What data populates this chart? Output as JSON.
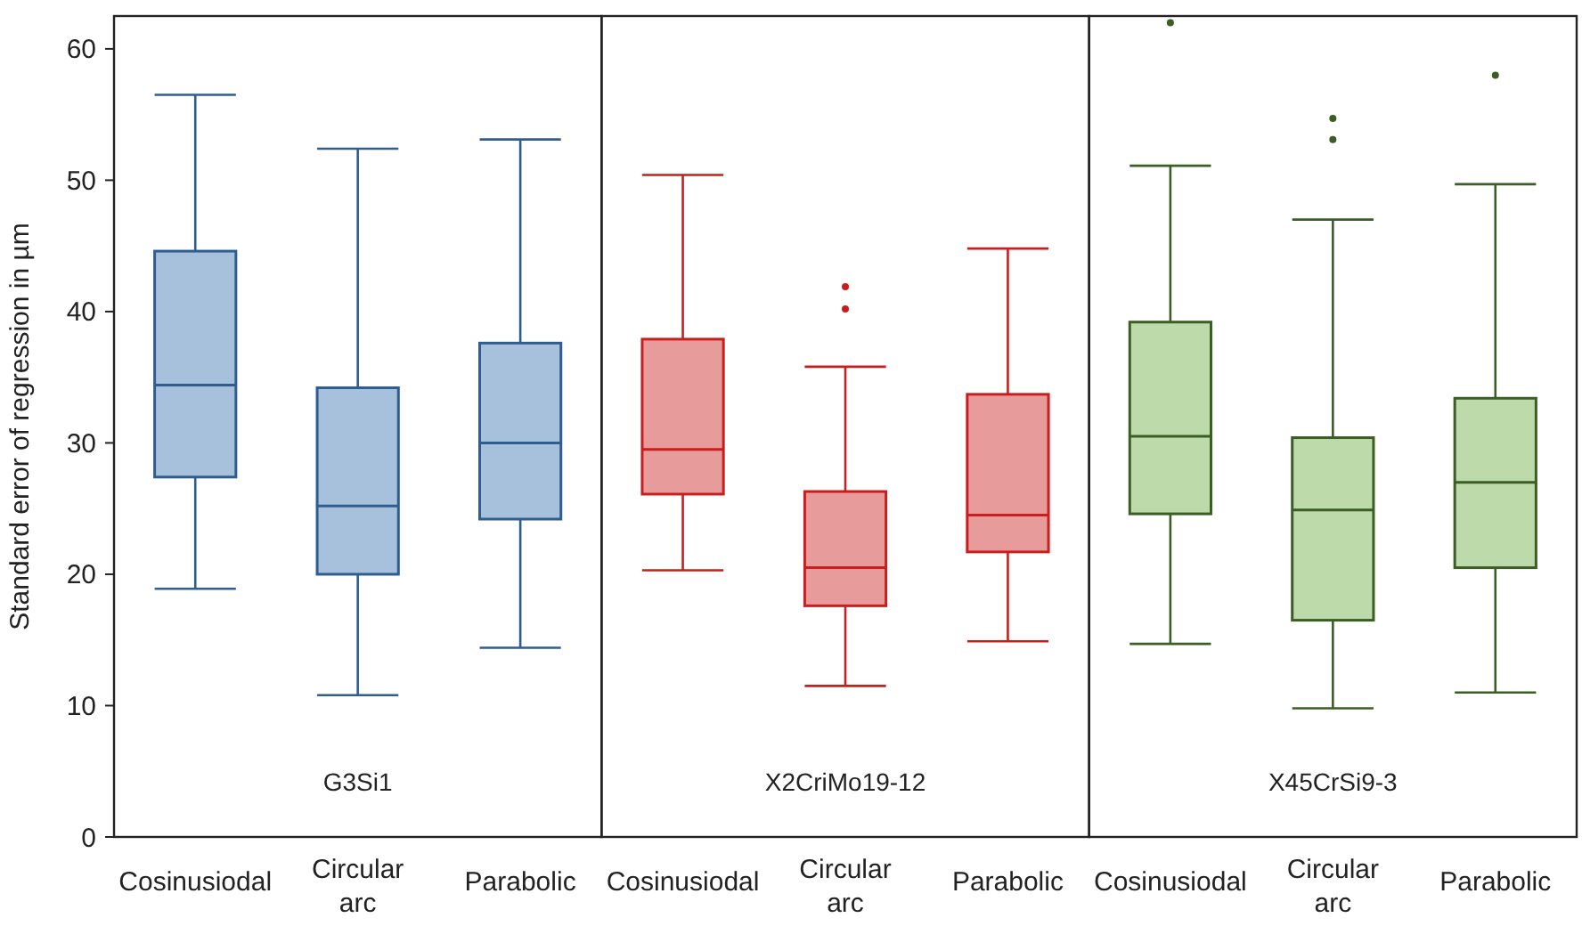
{
  "chart_data": [
    {
      "type": "box",
      "ylabel": "Standard error of regression in µm",
      "categories": [
        "Cosinusiodal",
        "Circular arc",
        "Parabolic"
      ],
      "ylim": [
        0,
        62.5
      ],
      "yticks": [
        0,
        10,
        20,
        30,
        40,
        50,
        60
      ],
      "series": [
        {
          "name": "G3Si1",
          "color": "#2e5d8e",
          "boxes": [
            {
              "low": 18.9,
              "q1": 27.4,
              "median": 34.4,
              "q3": 44.6,
              "high": 56.5
            },
            {
              "low": 10.8,
              "q1": 20.0,
              "median": 25.2,
              "q3": 34.2,
              "high": 52.4
            },
            {
              "low": 14.4,
              "q1": 24.2,
              "median": 30.0,
              "q3": 37.6,
              "high": 53.1
            }
          ]
        }
      ]
    },
    {
      "type": "box",
      "categories": [
        "Cosinusiodal",
        "Circular arc",
        "Parabolic"
      ],
      "ylim": [
        0,
        62.5
      ],
      "tick_labels": "x",
      "series": [
        {
          "name": "X2CriMo19-12",
          "color": "#c81e1e",
          "boxes": [
            {
              "low": 20.3,
              "q1": 26.1,
              "median": 29.5,
              "q3": 37.9,
              "high": 50.4
            },
            {
              "low": 11.5,
              "q1": 17.6,
              "median": 20.5,
              "q3": 26.3,
              "high": 35.8,
              "outliers": [
                41.9,
                40.2
              ]
            },
            {
              "low": 14.9,
              "q1": 21.7,
              "median": 24.5,
              "q3": 33.7,
              "high": 44.8
            }
          ]
        }
      ]
    },
    {
      "type": "box",
      "categories": [
        "Cosinusiodal",
        "Circular arc",
        "Parabolic"
      ],
      "ylim": [
        0,
        62.5
      ],
      "tick_labels": "x",
      "series": [
        {
          "name": "X45CrSi9-3",
          "color": "#3a5e23",
          "boxes": [
            {
              "low": 14.7,
              "q1": 24.6,
              "median": 30.5,
              "q3": 39.2,
              "high": 51.1,
              "outliers": [
                62.0
              ]
            },
            {
              "low": 9.8,
              "q1": 16.5,
              "median": 24.9,
              "q3": 30.4,
              "high": 47.0,
              "outliers": [
                54.7,
                53.1
              ]
            },
            {
              "low": 11.0,
              "q1": 20.5,
              "median": 27.0,
              "q3": 33.4,
              "high": 49.7,
              "outliers": [
                58.0
              ]
            }
          ]
        }
      ]
    }
  ]
}
